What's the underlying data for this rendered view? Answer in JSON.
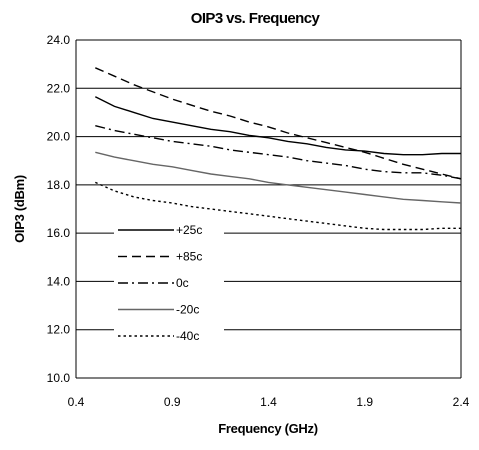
{
  "chart_data": {
    "type": "line",
    "title": "OIP3 vs. Frequency",
    "xlabel": "Frequency (GHz)",
    "ylabel": "OIP3 (dBm)",
    "xlim": [
      0.4,
      2.4
    ],
    "ylim": [
      10.0,
      24.0
    ],
    "x_ticks": [
      "0.4",
      "0.9",
      "1.4",
      "1.9",
      "2.4"
    ],
    "y_ticks": [
      "10.0",
      "12.0",
      "14.0",
      "16.0",
      "18.0",
      "20.0",
      "22.0",
      "24.0"
    ],
    "grid": "horizontal",
    "legend_position": "inside-left",
    "series": [
      {
        "name": "+25c",
        "style": "solid",
        "color": "#000000",
        "x": [
          0.5,
          0.6,
          0.7,
          0.8,
          0.9,
          1.0,
          1.1,
          1.2,
          1.3,
          1.4,
          1.5,
          1.6,
          1.7,
          1.8,
          1.9,
          2.0,
          2.1,
          2.2,
          2.3,
          2.4
        ],
        "y": [
          21.65,
          21.25,
          21.0,
          20.75,
          20.6,
          20.45,
          20.3,
          20.2,
          20.05,
          19.95,
          19.8,
          19.7,
          19.55,
          19.45,
          19.4,
          19.3,
          19.25,
          19.25,
          19.3,
          19.3
        ]
      },
      {
        "name": "+85c",
        "style": "dash",
        "color": "#000000",
        "x": [
          0.5,
          0.6,
          0.7,
          0.8,
          0.9,
          1.0,
          1.1,
          1.2,
          1.3,
          1.4,
          1.5,
          1.6,
          1.7,
          1.8,
          1.9,
          2.0,
          2.1,
          2.2,
          2.3,
          2.4
        ],
        "y": [
          22.85,
          22.5,
          22.15,
          21.85,
          21.55,
          21.3,
          21.05,
          20.85,
          20.6,
          20.4,
          20.15,
          19.95,
          19.75,
          19.55,
          19.35,
          19.1,
          18.85,
          18.65,
          18.45,
          18.25
        ]
      },
      {
        "name": "0c",
        "style": "dashdot",
        "color": "#000000",
        "x": [
          0.5,
          0.6,
          0.7,
          0.8,
          0.9,
          1.0,
          1.1,
          1.2,
          1.3,
          1.4,
          1.5,
          1.6,
          1.7,
          1.8,
          1.9,
          2.0,
          2.1,
          2.2,
          2.3,
          2.4
        ],
        "y": [
          20.45,
          20.25,
          20.1,
          19.95,
          19.8,
          19.7,
          19.6,
          19.45,
          19.35,
          19.25,
          19.15,
          19.0,
          18.9,
          18.8,
          18.65,
          18.55,
          18.5,
          18.5,
          18.4,
          18.25
        ]
      },
      {
        "name": "-20c",
        "style": "solid",
        "color": "#666666",
        "x": [
          0.5,
          0.6,
          0.7,
          0.8,
          0.9,
          1.0,
          1.1,
          1.2,
          1.3,
          1.4,
          1.5,
          1.6,
          1.7,
          1.8,
          1.9,
          2.0,
          2.1,
          2.2,
          2.3,
          2.4
        ],
        "y": [
          19.35,
          19.15,
          19.0,
          18.85,
          18.75,
          18.6,
          18.45,
          18.35,
          18.25,
          18.1,
          18.0,
          17.9,
          17.8,
          17.7,
          17.6,
          17.5,
          17.4,
          17.35,
          17.3,
          17.25
        ]
      },
      {
        "name": "-40c",
        "style": "dot",
        "color": "#000000",
        "x": [
          0.5,
          0.6,
          0.7,
          0.8,
          0.9,
          1.0,
          1.1,
          1.2,
          1.3,
          1.4,
          1.5,
          1.6,
          1.7,
          1.8,
          1.9,
          2.0,
          2.1,
          2.2,
          2.3,
          2.4
        ],
        "y": [
          18.1,
          17.75,
          17.5,
          17.35,
          17.25,
          17.1,
          17.0,
          16.9,
          16.8,
          16.7,
          16.6,
          16.5,
          16.4,
          16.3,
          16.2,
          16.15,
          16.15,
          16.15,
          16.2,
          16.2
        ]
      }
    ]
  }
}
